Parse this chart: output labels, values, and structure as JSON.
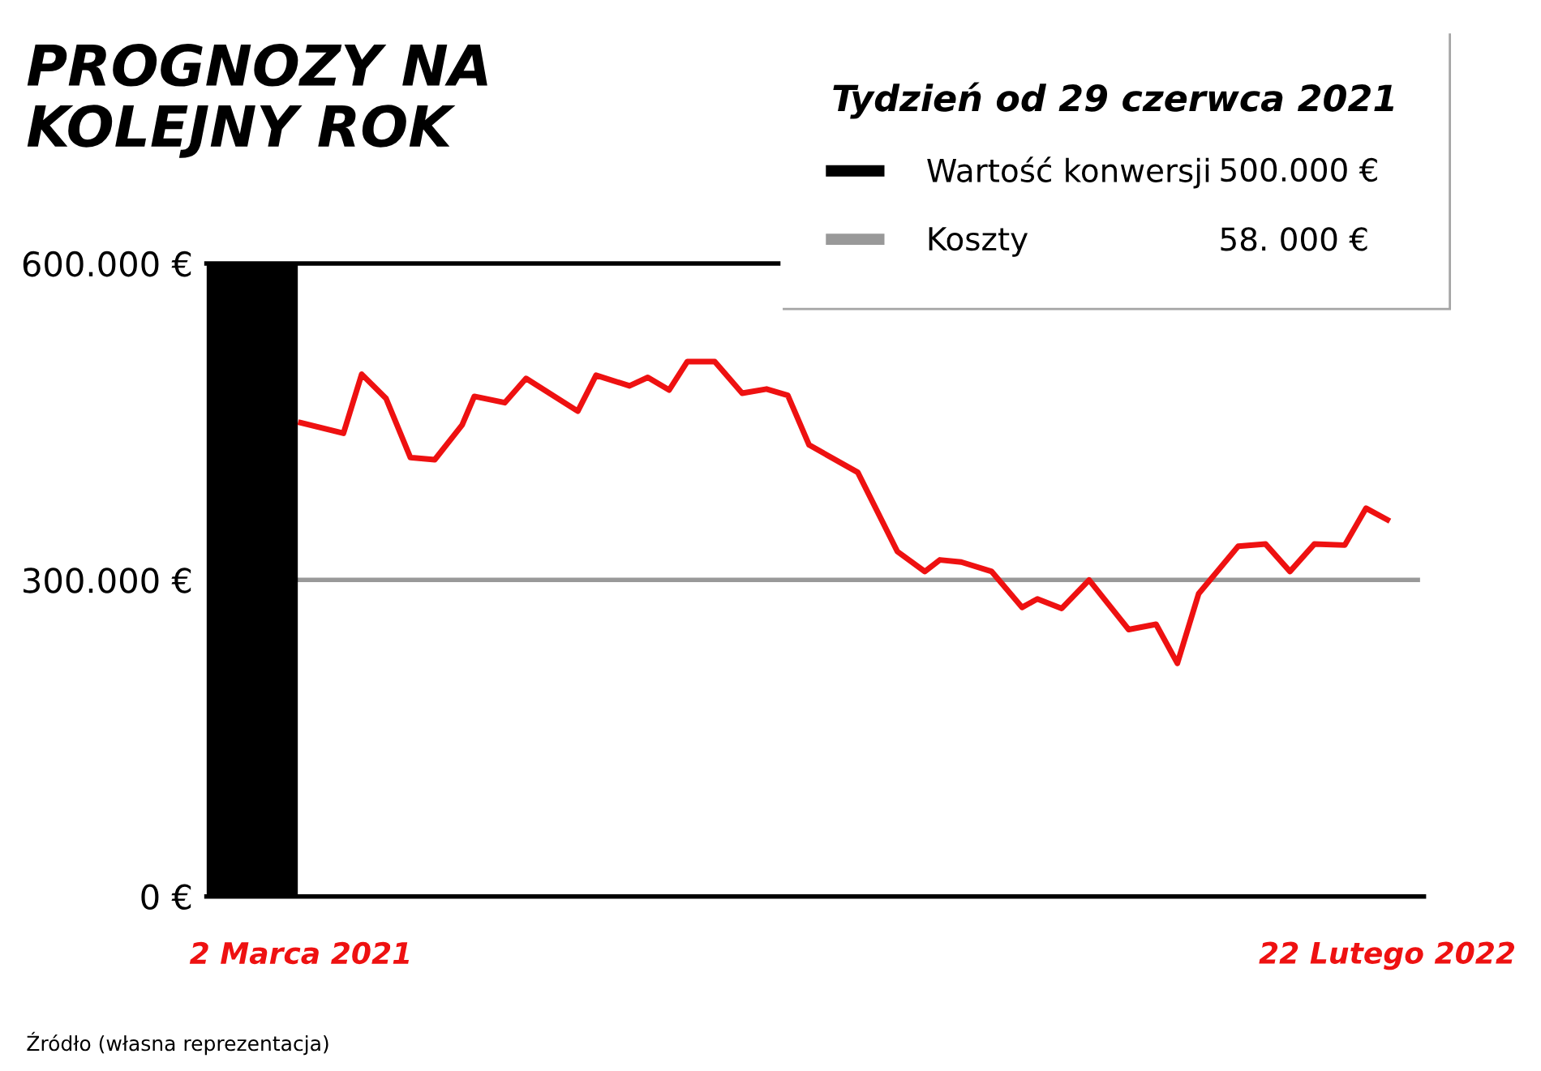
{
  "chart_data": {
    "type": "line",
    "title": "PROGNOZY NA\nKOLEJNY ROK",
    "legend_title": "Tydzień od 29 czerwca 2021",
    "annotations": [
      "500.000 €",
      "58. 000 €",
      "Źródło (własna reprezentacja)"
    ],
    "xlim": [
      "2021-01-30",
      "2022-03-06"
    ],
    "xticks": [
      {
        "value": "2021-03-02",
        "label": "2 Marca 2021"
      },
      {
        "value": "2022-02-22",
        "label": "22 Lutego 2022"
      }
    ],
    "ylim": [
      0,
      600000
    ],
    "yticks": [
      {
        "value": 0,
        "label": "0 €"
      },
      {
        "value": 300000,
        "label": "300.000 €"
      },
      {
        "value": 600000,
        "label": "600.000 €"
      }
    ],
    "grid": false,
    "legend": "top right",
    "ref_lines": [
      {
        "axis": "y",
        "value": 600000,
        "color": "#000000"
      }
    ],
    "series": [
      {
        "name": "Wartość konwersji",
        "type": "bar",
        "color": "#000000",
        "x": [
          "2021-02-14"
        ],
        "values": [
          600000
        ]
      },
      {
        "name": "Koszty",
        "color": "#999999",
        "x": [
          "2021-03-01",
          "2022-03-04"
        ],
        "values": [
          300000,
          300000
        ]
      },
      {
        "color": "#ee1111",
        "x": [
          "2021-03-02",
          "2021-03-16",
          "2021-03-22",
          "2021-03-30",
          "2021-04-07",
          "2021-04-15",
          "2021-04-24",
          "2021-04-28",
          "2021-05-08",
          "2021-05-15",
          "2021-06-01",
          "2021-06-07",
          "2021-06-18",
          "2021-06-24",
          "2021-07-01",
          "2021-07-07",
          "2021-07-16",
          "2021-07-25",
          "2021-08-02",
          "2021-08-09",
          "2021-08-16",
          "2021-09-01",
          "2021-09-14",
          "2021-09-23",
          "2021-09-28",
          "2021-10-05",
          "2021-10-15",
          "2021-10-25",
          "2021-10-30",
          "2021-11-07",
          "2021-11-16",
          "2021-11-29",
          "2021-12-08",
          "2021-12-15",
          "2021-12-22",
          "2022-01-04",
          "2022-01-13",
          "2022-01-21",
          "2022-01-29",
          "2022-02-08",
          "2022-02-15",
          "2022-02-22"
        ],
        "values": [
          449000,
          439000,
          495000,
          472000,
          416000,
          414000,
          447000,
          474000,
          468000,
          491000,
          460000,
          494000,
          484000,
          492000,
          480000,
          507000,
          507000,
          477000,
          481000,
          475000,
          428000,
          402000,
          327000,
          308000,
          319000,
          317000,
          308000,
          274000,
          282000,
          273000,
          300000,
          253000,
          258000,
          221000,
          287000,
          332000,
          334000,
          308000,
          334000,
          333000,
          368000,
          357000
        ]
      }
    ]
  }
}
